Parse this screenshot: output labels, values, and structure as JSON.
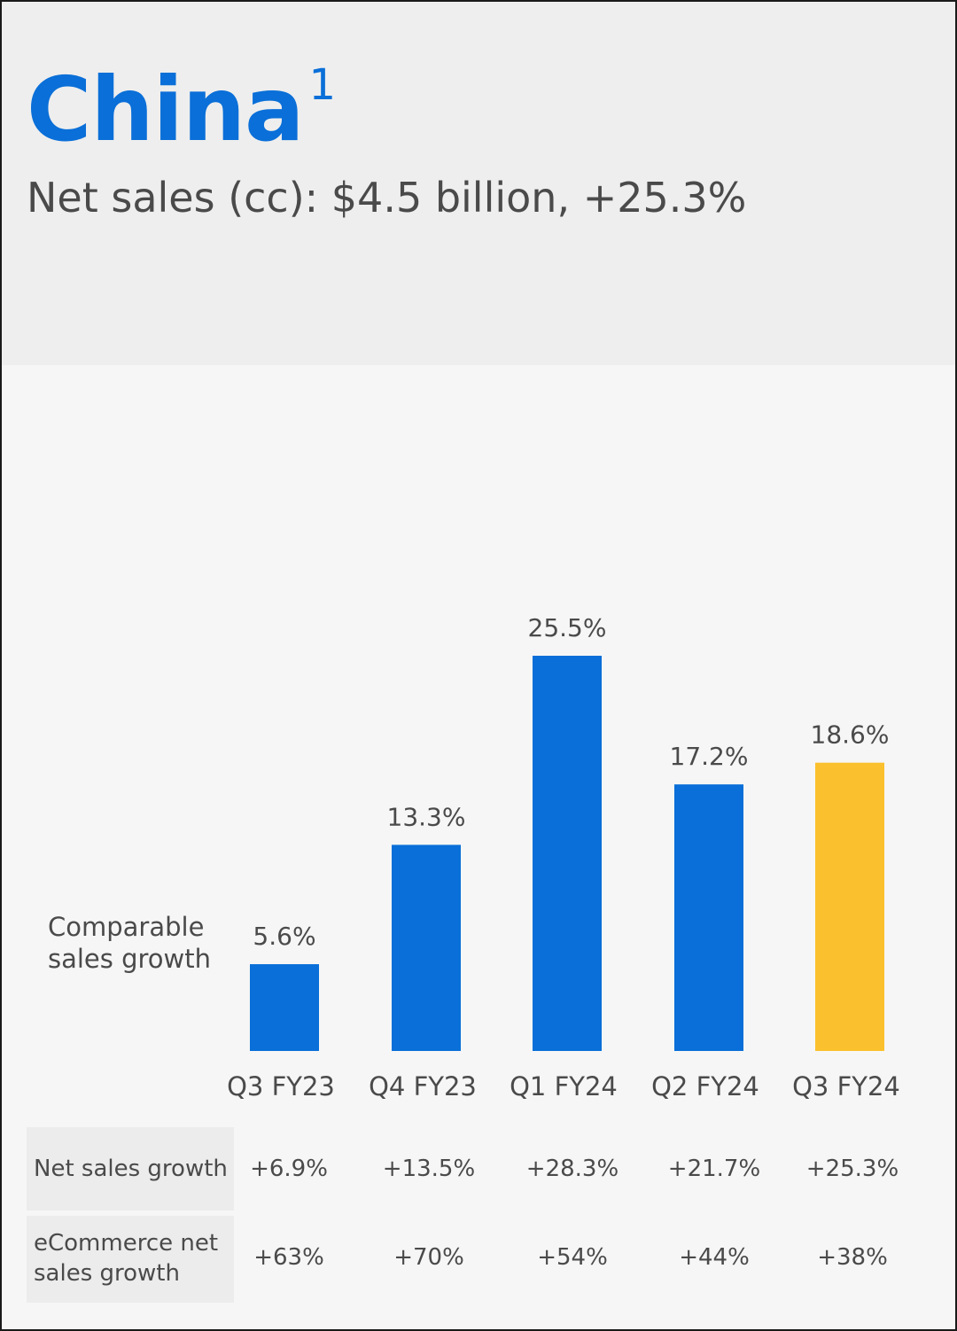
{
  "header": {
    "title": "China",
    "title_footnote": "1",
    "subtitle": "Net sales (cc): $4.5 billion, +25.3%"
  },
  "colors": {
    "title": "#0a6fd8",
    "bar_blue": "#0a6fd8",
    "bar_highlight": "#fbc02d"
  },
  "metric_label_line1": "Comparable",
  "metric_label_line2": "sales growth",
  "chart_data": {
    "type": "bar",
    "categories": [
      "Q3 FY23",
      "Q4 FY23",
      "Q1 FY24",
      "Q2 FY24",
      "Q3 FY24"
    ],
    "values": [
      5.6,
      13.3,
      25.5,
      17.2,
      18.6
    ],
    "data_labels": [
      "5.6%",
      "13.3%",
      "25.5%",
      "17.2%",
      "18.6%"
    ],
    "highlight_index": 4,
    "ylim": [
      0,
      25.5
    ],
    "grid": false,
    "legend": "none"
  },
  "table": {
    "rows": [
      {
        "label_line1": "Net sales growth",
        "label_line2": "",
        "values": [
          "+6.9%",
          "+13.5%",
          "+28.3%",
          "+21.7%",
          "+25.3%"
        ]
      },
      {
        "label_line1": "eCommerce net",
        "label_line2": "sales growth",
        "values": [
          "+63%",
          "+70%",
          "+54%",
          "+44%",
          "+38%"
        ]
      }
    ]
  }
}
